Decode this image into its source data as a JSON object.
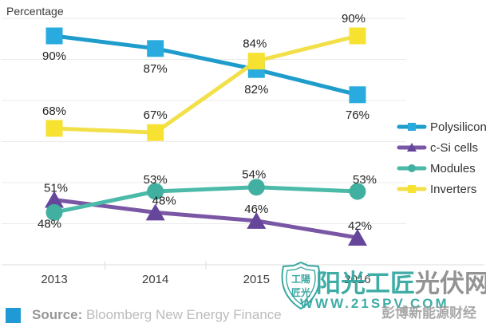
{
  "title": "Percentage",
  "chart_data": {
    "type": "line",
    "title": "Percentage",
    "xlabel": "",
    "ylabel": "Percentage",
    "categories": [
      "2013",
      "2014",
      "2015",
      "2016"
    ],
    "series": [
      {
        "name": "Polysilicon",
        "marker": "square",
        "line_color": "#1e9ccb",
        "marker_color": "#29abdf",
        "values": [
          90,
          87,
          82,
          76
        ],
        "labels": [
          "90%",
          "87%",
          "82%",
          "76%"
        ],
        "label_dx": [
          0,
          0,
          0,
          0
        ],
        "label_dy": [
          30,
          30,
          30,
          30
        ]
      },
      {
        "name": "c-Si cells",
        "marker": "triangle",
        "line_color": "#7a57a5",
        "marker_color": "#66469b",
        "values": [
          51,
          48,
          46,
          42
        ],
        "labels": [
          "51%",
          "48%",
          "46%",
          "42%"
        ],
        "label_dx": [
          2,
          11,
          0,
          3
        ],
        "label_dy": [
          -10,
          -10,
          -10,
          -10
        ]
      },
      {
        "name": "Modules",
        "marker": "circle",
        "line_color": "#4cbaa9",
        "marker_color": "#41b0a0",
        "values": [
          48,
          53,
          54,
          53
        ],
        "labels": [
          "48%",
          "53%",
          "54%",
          "53%"
        ],
        "label_dx": [
          -6,
          0,
          -3,
          9
        ],
        "label_dy": [
          19,
          -10,
          -11,
          -10
        ]
      },
      {
        "name": "Inverters",
        "marker": "square",
        "line_color": "#f2e04a",
        "marker_color": "#f7e232",
        "values": [
          68,
          67,
          84,
          90
        ],
        "labels": [
          "68%",
          "67%",
          "84%",
          "90%"
        ],
        "label_dx": [
          0,
          0,
          -2,
          -5
        ],
        "label_dy": [
          -17,
          -17,
          -17,
          -17
        ]
      }
    ],
    "ylim": [
      40,
      98
    ],
    "grid": "horizontal",
    "legend_position": "right"
  },
  "source": {
    "label": "Source:",
    "text": " Bloomberg New Energy Finance"
  },
  "watermark": {
    "badge_line1": "工陽",
    "badge_line2": "匠光",
    "brand_teal": "阳光工匠",
    "brand_gray": "光伏网",
    "url": "WWW.21SPV.COM",
    "overlay": "彭博新能源财经"
  },
  "colors": {
    "watermark_teal": "#35a8a2",
    "gridline": "#ebebeb",
    "axis_line": "#dcdcdc",
    "data_label": "#222222",
    "axis_label": "#3d3d3d",
    "source_square": "#1f9ad6"
  }
}
